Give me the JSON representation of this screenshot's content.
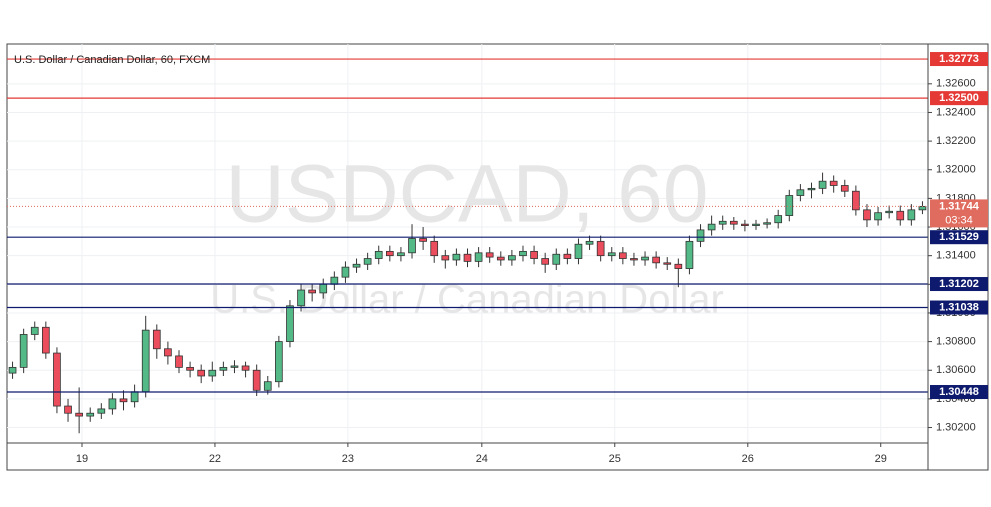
{
  "chart_data": {
    "type": "candlestick",
    "title": "U.S. Dollar / Canadian Dollar, 60, FXCM",
    "watermark": "USDCAD, 60",
    "watermark_subtitle": "U.S. Dollar / Canadian Dollar",
    "up_color": "#53b987",
    "down_color": "#eb4d5c",
    "open": [
      1.3058,
      1.3062,
      1.3085,
      1.309,
      1.3072,
      1.3035,
      1.303,
      1.3028,
      1.303,
      1.3033,
      1.304,
      1.3038,
      1.3045,
      1.3088,
      1.3075,
      1.307,
      1.3062,
      1.306,
      1.3056,
      1.306,
      1.3062,
      1.3063,
      1.306,
      1.3046,
      1.3052,
      1.308,
      1.3105,
      1.3116,
      1.3114,
      1.312,
      1.3125,
      1.3132,
      1.3134,
      1.3138,
      1.3143,
      1.314,
      1.3142,
      1.3152,
      1.315,
      1.314,
      1.3137,
      1.3141,
      1.3136,
      1.3142,
      1.3139,
      1.3137,
      1.314,
      1.3143,
      1.3138,
      1.3134,
      1.3141,
      1.3138,
      1.3148,
      1.315,
      1.314,
      1.3142,
      1.3138,
      1.3137,
      1.3139,
      1.3135,
      1.3134,
      1.3131,
      1.315,
      1.3158,
      1.3162,
      1.3164,
      1.3162,
      1.3161,
      1.3162,
      1.3163,
      1.3168,
      1.3182,
      1.3186,
      1.3187,
      1.3192,
      1.3189,
      1.3185,
      1.3172,
      1.3165,
      1.317,
      1.3171,
      1.3165,
      1.3172
    ],
    "high": [
      1.3066,
      1.3089,
      1.3094,
      1.3094,
      1.3076,
      1.304,
      1.3048,
      1.3034,
      1.3037,
      1.3044,
      1.3046,
      1.305,
      1.3098,
      1.3092,
      1.308,
      1.3074,
      1.3066,
      1.3064,
      1.3066,
      1.3066,
      1.3067,
      1.3066,
      1.3064,
      1.3056,
      1.3084,
      1.3109,
      1.312,
      1.312,
      1.3124,
      1.3129,
      1.3136,
      1.3138,
      1.3142,
      1.3147,
      1.3147,
      1.3146,
      1.3162,
      1.316,
      1.3154,
      1.3144,
      1.3145,
      1.3145,
      1.3146,
      1.3146,
      1.3143,
      1.3144,
      1.3147,
      1.3147,
      1.3142,
      1.3145,
      1.3145,
      1.3152,
      1.3154,
      1.3154,
      1.3146,
      1.3146,
      1.3142,
      1.3143,
      1.3143,
      1.3139,
      1.3138,
      1.3154,
      1.3162,
      1.3168,
      1.3168,
      1.3167,
      1.3165,
      1.3165,
      1.3166,
      1.3172,
      1.3186,
      1.319,
      1.3191,
      1.3198,
      1.3196,
      1.3193,
      1.3189,
      1.3176,
      1.3174,
      1.3175,
      1.3175,
      1.3176,
      1.3178
    ],
    "low": [
      1.3054,
      1.3058,
      1.3081,
      1.3068,
      1.303,
      1.3024,
      1.3016,
      1.3024,
      1.3026,
      1.3029,
      1.3032,
      1.3034,
      1.3041,
      1.3068,
      1.3064,
      1.3058,
      1.3055,
      1.3051,
      1.3052,
      1.3056,
      1.3058,
      1.3055,
      1.3042,
      1.3043,
      1.3048,
      1.3076,
      1.3101,
      1.3108,
      1.311,
      1.3116,
      1.3121,
      1.3128,
      1.313,
      1.3134,
      1.3136,
      1.3136,
      1.3138,
      1.3144,
      1.3135,
      1.3131,
      1.3133,
      1.3132,
      1.3132,
      1.3135,
      1.3133,
      1.3133,
      1.3136,
      1.3134,
      1.3128,
      1.313,
      1.3134,
      1.3134,
      1.3144,
      1.3136,
      1.3136,
      1.3134,
      1.3133,
      1.3133,
      1.3131,
      1.313,
      1.3118,
      1.3127,
      1.3146,
      1.3154,
      1.3158,
      1.3158,
      1.3157,
      1.3158,
      1.3159,
      1.3159,
      1.3164,
      1.3178,
      1.318,
      1.3183,
      1.3184,
      1.3181,
      1.3168,
      1.316,
      1.3161,
      1.3166,
      1.3161,
      1.3161,
      1.3169
    ],
    "close": [
      1.3062,
      1.3085,
      1.309,
      1.3072,
      1.3035,
      1.303,
      1.3028,
      1.303,
      1.3033,
      1.304,
      1.3038,
      1.3045,
      1.3088,
      1.3075,
      1.307,
      1.3062,
      1.306,
      1.3056,
      1.306,
      1.3062,
      1.3063,
      1.306,
      1.3046,
      1.3052,
      1.308,
      1.3105,
      1.3116,
      1.3114,
      1.312,
      1.3125,
      1.3132,
      1.3134,
      1.3138,
      1.3143,
      1.314,
      1.3142,
      1.3152,
      1.315,
      1.314,
      1.3137,
      1.3141,
      1.3136,
      1.3142,
      1.3139,
      1.3137,
      1.314,
      1.3143,
      1.3138,
      1.3134,
      1.3141,
      1.3138,
      1.3148,
      1.315,
      1.314,
      1.3142,
      1.3138,
      1.3137,
      1.3139,
      1.3135,
      1.3134,
      1.3131,
      1.315,
      1.3158,
      1.3162,
      1.3164,
      1.3162,
      1.3161,
      1.3162,
      1.3163,
      1.3168,
      1.3182,
      1.3186,
      1.3187,
      1.3192,
      1.3189,
      1.3185,
      1.3172,
      1.3165,
      1.317,
      1.3171,
      1.3165,
      1.3172,
      1.31744
    ],
    "xlim": [
      0,
      83
    ],
    "xticks": [
      {
        "value": 6.76,
        "label": "19"
      },
      {
        "value": 18.74,
        "label": "22"
      },
      {
        "value": 30.72,
        "label": "23"
      },
      {
        "value": 42.79,
        "label": "24"
      },
      {
        "value": 54.77,
        "label": "25"
      },
      {
        "value": 66.76,
        "label": "26"
      },
      {
        "value": 78.74,
        "label": "29"
      }
    ],
    "ylim": [
      1.30092,
      1.32878
    ],
    "yticks": [
      {
        "value": 1.302,
        "label": "1.30200"
      },
      {
        "value": 1.304,
        "label": "1.30400"
      },
      {
        "value": 1.306,
        "label": "1.30600"
      },
      {
        "value": 1.308,
        "label": "1.30800"
      },
      {
        "value": 1.31,
        "label": "1.31000"
      },
      {
        "value": 1.312,
        "label": "1.31200"
      },
      {
        "value": 1.314,
        "label": "1.31400"
      },
      {
        "value": 1.316,
        "label": "1.31600"
      },
      {
        "value": 1.318,
        "label": "1.31800"
      },
      {
        "value": 1.32,
        "label": "1.32000"
      },
      {
        "value": 1.322,
        "label": "1.32200"
      },
      {
        "value": 1.324,
        "label": "1.32400"
      },
      {
        "value": 1.326,
        "label": "1.32600"
      }
    ],
    "grid": true,
    "levels": [
      {
        "value": 1.32773,
        "label": "1.32773",
        "color": "#e53935"
      },
      {
        "value": 1.325,
        "label": "1.32500",
        "color": "#e53935"
      },
      {
        "value": 1.31529,
        "label": "1.31529",
        "color": "#0d1a6e"
      },
      {
        "value": 1.31202,
        "label": "1.31202",
        "color": "#0d1a6e"
      },
      {
        "value": 1.31038,
        "label": "1.31038",
        "color": "#0d1a6e"
      },
      {
        "value": 1.30448,
        "label": "1.30448",
        "color": "#0d1a6e"
      }
    ],
    "last_price": {
      "value": 1.31744,
      "label": "1.31744",
      "color": "#e06c5f"
    },
    "countdown": "03:34"
  }
}
